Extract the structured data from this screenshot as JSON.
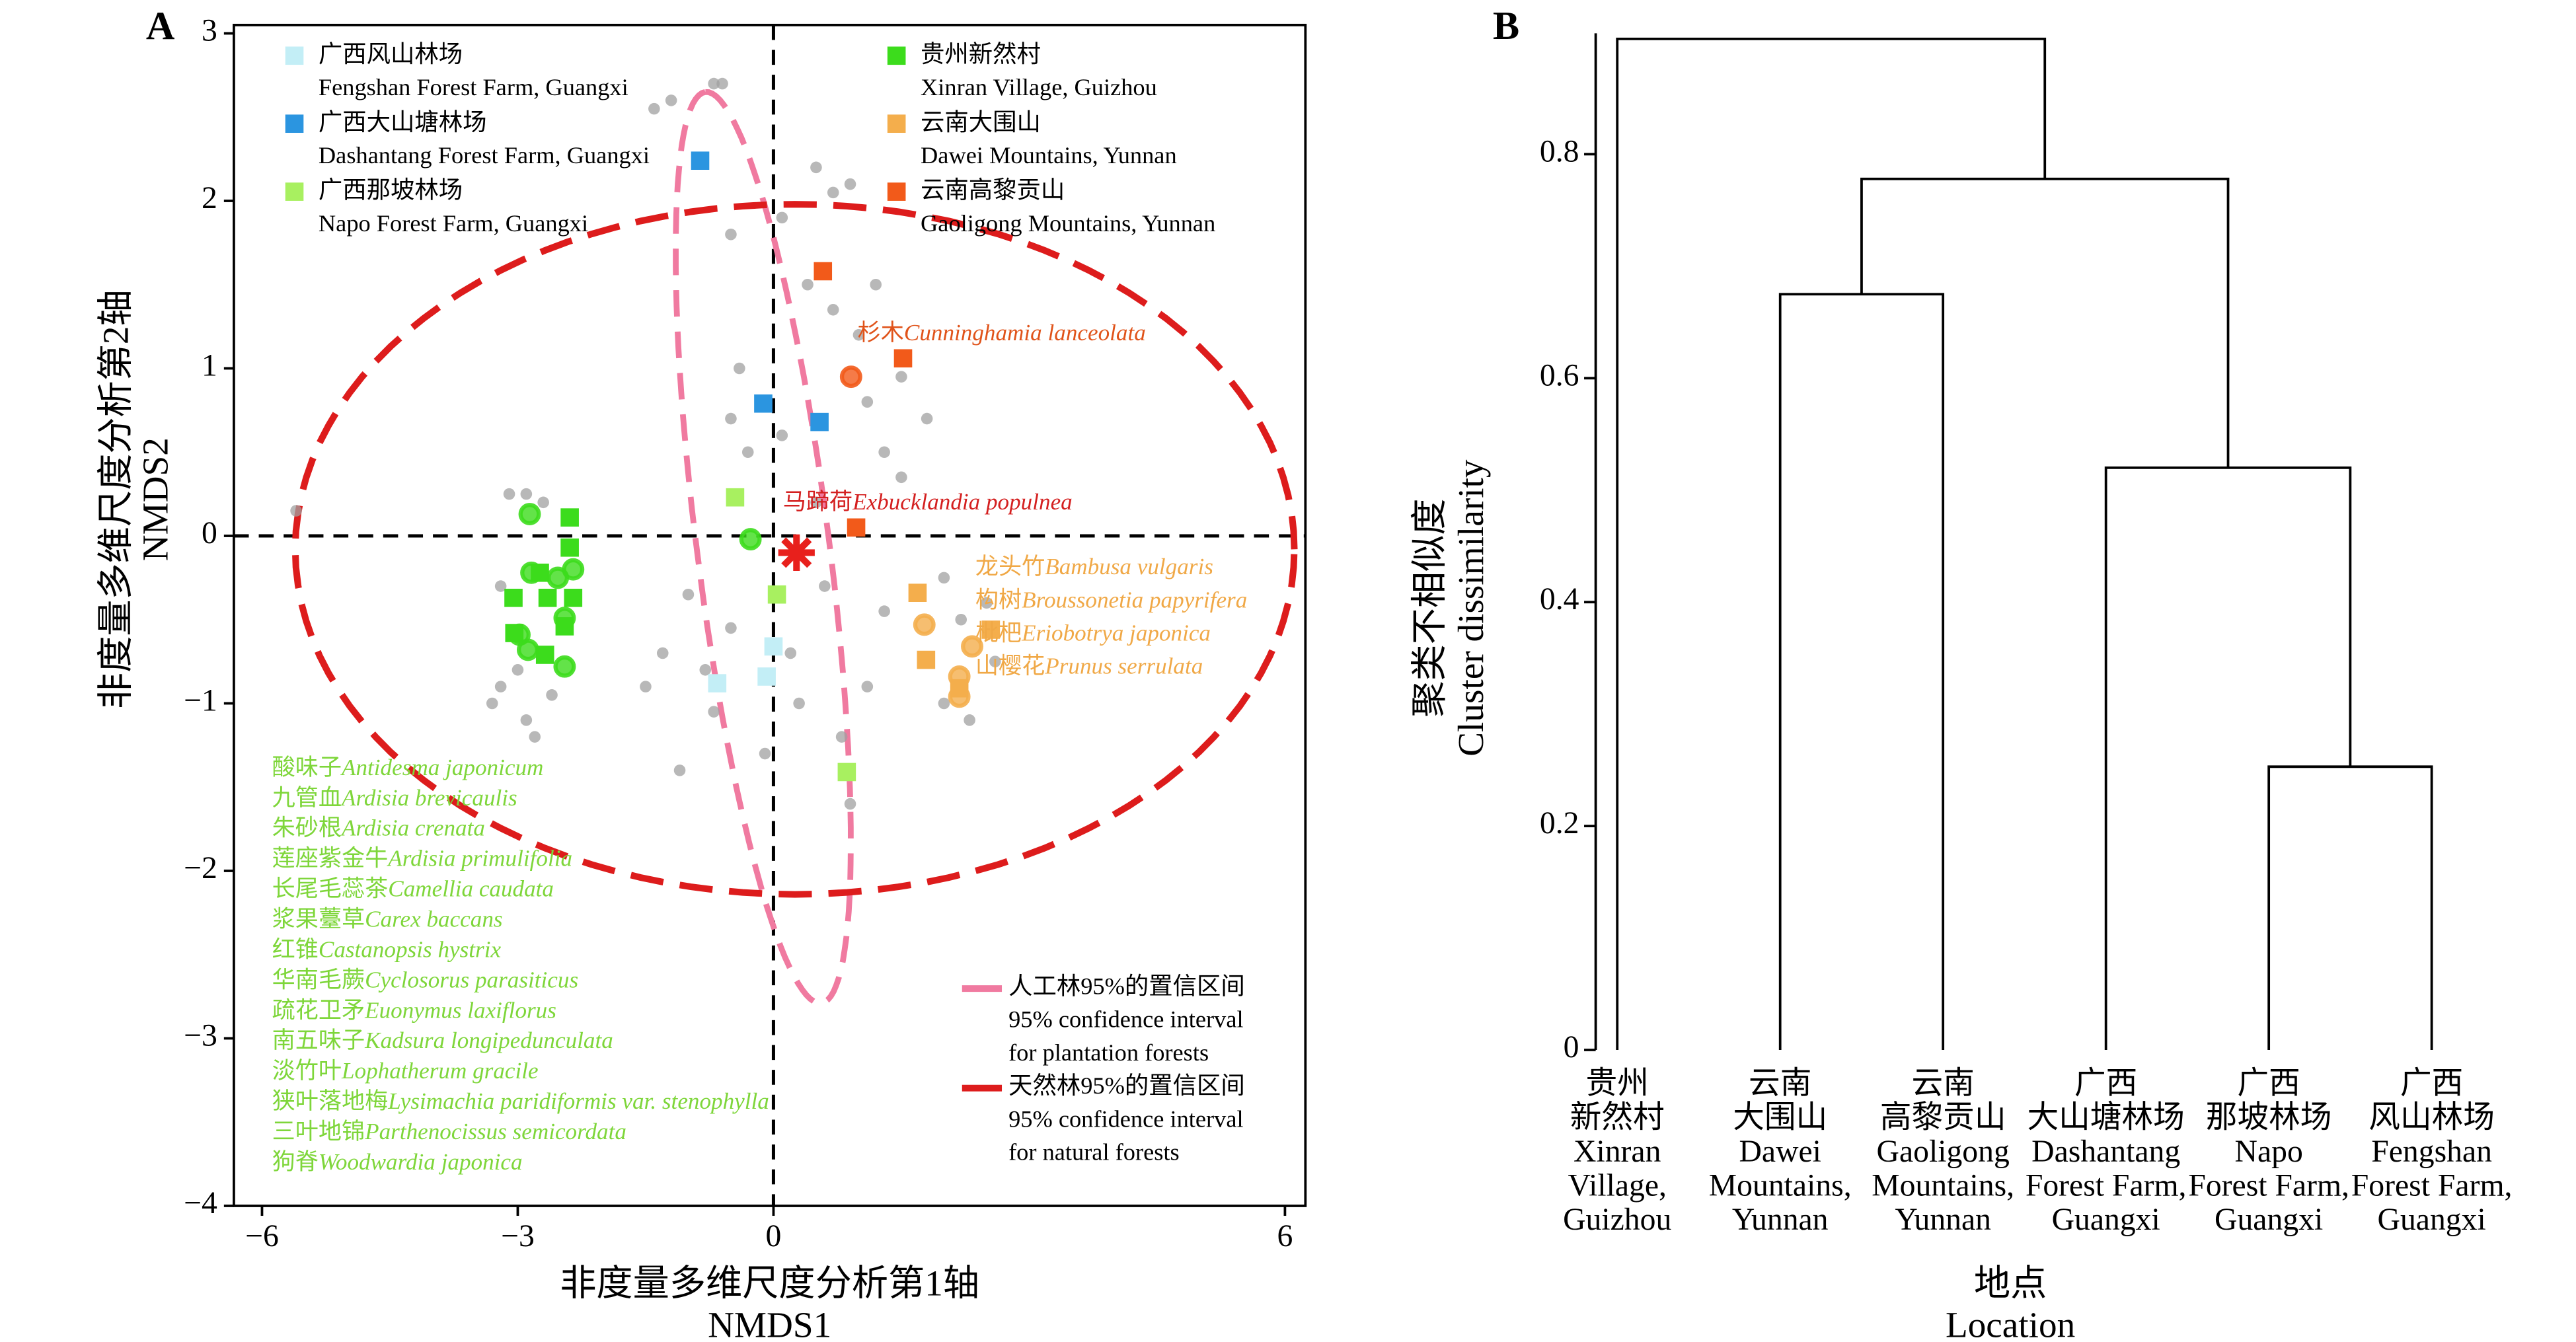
{
  "chart_data": [
    {
      "type": "scatter",
      "panel": "A",
      "x_label": [
        "非度量多维尺度分析第1轴",
        "NMDS1"
      ],
      "y_label": [
        "非度量多维尺度分析第2轴",
        "NMDS2"
      ],
      "xlim": [
        -6.33,
        6.24
      ],
      "ylim": [
        -4,
        3.05
      ],
      "xticks": [
        {
          "value": -6,
          "label": "−6"
        },
        {
          "value": -3,
          "label": "−3"
        },
        0,
        6
      ],
      "yticks": [
        {
          "value": -4,
          "label": "−4"
        },
        {
          "value": -3,
          "label": "−3"
        },
        {
          "value": -2,
          "label": "−2"
        },
        {
          "value": -1,
          "label": "−1"
        },
        0,
        1,
        2,
        3
      ],
      "zero_lines": true,
      "series": [
        {
          "color": "#a0a0a0",
          "marker": "dot",
          "x": [
            -5.6,
            -3.1,
            -2.9,
            -3.2,
            -3.3,
            -2.9,
            -2.8,
            -3.0,
            -2.6,
            -3.2,
            -2.7,
            -1.2,
            -1.4,
            -0.6,
            -0.7,
            -0.5,
            0.5,
            0.9,
            0.7,
            0.1,
            0.4,
            0.7,
            1.2,
            1.0,
            1.5,
            1.8,
            0.5,
            0.1,
            -0.3,
            -0.5,
            -0.4,
            1.1,
            1.3,
            1.5,
            0.6,
            1.3,
            0.2,
            -0.5,
            -0.8,
            -1.0,
            -1.3,
            -1.5,
            0.8,
            1.1,
            -0.7,
            -0.1,
            2.0,
            2.2,
            2.5,
            2.0,
            2.3,
            2.6,
            0.3,
            0.9,
            -1.1
          ],
          "y": [
            0.15,
            0.25,
            0.25,
            -0.9,
            -1.0,
            -1.1,
            -1.2,
            -0.8,
            -0.95,
            -0.3,
            0.2,
            2.6,
            2.55,
            2.7,
            2.7,
            1.8,
            2.2,
            2.1,
            2.05,
            1.9,
            1.5,
            1.35,
            1.5,
            1.2,
            0.95,
            0.7,
            0.2,
            0.6,
            0.5,
            0.7,
            1.0,
            0.8,
            0.5,
            0.35,
            -0.3,
            -0.45,
            -0.7,
            -0.55,
            -0.8,
            -0.35,
            -0.7,
            -0.9,
            -1.2,
            -0.9,
            -1.05,
            -1.3,
            -0.25,
            -0.5,
            -0.4,
            -1.0,
            -1.1,
            -0.75,
            -1.0,
            -1.6,
            -1.4
          ]
        },
        {
          "name": "广西风山林场",
          "name_en": "Fengshan Forest Farm, Guangxi",
          "color": "#c3eef6",
          "marker": "square",
          "x": [
            0,
            -0.08,
            -0.66
          ],
          "y": [
            -0.66,
            -0.84,
            -0.88
          ]
        },
        {
          "name": "广西大山塘林场",
          "name_en": "Dashantang Forest Farm, Guangxi",
          "color": "#2b95e0",
          "marker": "square",
          "x": [
            -0.86,
            -0.12,
            0.54
          ],
          "y": [
            2.24,
            0.79,
            0.68
          ]
        },
        {
          "name": "广西那坡林场",
          "name_en": "Napo Forest Farm, Guangxi",
          "color": "#a8f060",
          "marker": "square",
          "x": [
            -0.45,
            0.04,
            0.86
          ],
          "y": [
            0.23,
            -0.35,
            -1.41
          ]
        },
        {
          "name": "贵州新然村",
          "name_en": "Xinran Village, Guizhou",
          "color": "#3cdc1c",
          "marker": "square",
          "x": [
            -2.39,
            -3.05,
            -2.39,
            -2.74,
            -2.65,
            -2.35,
            -2.45,
            -3.04,
            -2.68
          ],
          "y": [
            0.11,
            -0.37,
            -0.07,
            -0.22,
            -0.37,
            -0.37,
            -0.54,
            -0.58,
            -0.71
          ]
        },
        {
          "name": "云南大围山",
          "name_en": "Dawei Mountains, Yunnan",
          "color": "#f4ae4c",
          "marker": "square",
          "x": [
            1.69,
            1.79,
            2.55,
            2.18
          ],
          "y": [
            -0.34,
            -0.74,
            -0.56,
            -0.91
          ]
        },
        {
          "name": "云南高黎贡山",
          "name_en": "Gaoligong Mountains, Yunnan",
          "color": "#f25a1a",
          "marker": "square",
          "x": [
            0.58,
            1.52,
            0.97
          ],
          "y": [
            1.58,
            1.06,
            0.05
          ]
        },
        {
          "color": "#3cdc1c",
          "marker": "circle",
          "x": [
            -2.86,
            -2.84,
            -2.35,
            -2.98,
            -2.45,
            -2.45,
            -2.88,
            -0.27,
            -2.53
          ],
          "y": [
            0.13,
            -0.22,
            -0.2,
            -0.59,
            -0.78,
            -0.49,
            -0.68,
            -0.02,
            -0.25
          ]
        },
        {
          "color": "#f4ae4c",
          "marker": "circle",
          "x": [
            1.77,
            2.33,
            2.18,
            2.18
          ],
          "y": [
            -0.53,
            -0.66,
            -0.84,
            -0.96
          ]
        },
        {
          "color": "#f25a1a",
          "marker": "circle",
          "x": [
            0.91
          ],
          "y": [
            0.95
          ]
        },
        {
          "color": "#e8201c",
          "marker": "star",
          "x": [
            0.27
          ],
          "y": [
            -0.1
          ]
        }
      ],
      "ellipses": [
        {
          "name": [
            "人工林95%的置信区间",
            "95% confidence interval",
            "for plantation forests"
          ],
          "color": "#f07aa0",
          "center": [
            -0.12,
            -0.07
          ],
          "axis1": [
            -0.68,
            2.72
          ],
          "axis2": [
            0.77,
            0.05
          ]
        },
        {
          "name": [
            "天然林95%的置信区间",
            "95% confidence interval",
            "for natural forests"
          ],
          "color": "#dd1c1c",
          "center": [
            0.25,
            -0.08
          ],
          "axis1": [
            5.86,
            0
          ],
          "axis2": [
            0,
            2.06
          ]
        }
      ],
      "annotations": [
        {
          "color": "#e0531a",
          "items": [
            {
              "zh": "杉木",
              "latin": "Cunninghamia lanceolata"
            }
          ]
        },
        {
          "color": "#d42020",
          "items": [
            {
              "zh": "马蹄荷",
              "latin": "Exbucklandia populnea"
            }
          ]
        },
        {
          "color": "#f0a846",
          "items": [
            {
              "zh": "龙头竹",
              "latin": "Bambusa vulgaris"
            },
            {
              "zh": "构树",
              "latin": "Broussonetia papyrifera"
            },
            {
              "zh": "枇杷",
              "latin": "Eriobotrya japonica"
            },
            {
              "zh": "山樱花",
              "latin": "Prunus serrulata"
            }
          ]
        },
        {
          "color": "#7ed63a",
          "items": [
            {
              "zh": "酸味子",
              "latin": "Antidesma japonicum"
            },
            {
              "zh": "九管血",
              "latin": "Ardisia brevicaulis"
            },
            {
              "zh": "朱砂根",
              "latin": "Ardisia crenata"
            },
            {
              "zh": "莲座紫金牛",
              "latin": "Ardisia primulifolia"
            },
            {
              "zh": "长尾毛蕊茶",
              "latin": "Camellia caudata"
            },
            {
              "zh": "浆果薹草",
              "latin": "Carex baccans"
            },
            {
              "zh": "红锥",
              "latin": "Castanopsis hystrix"
            },
            {
              "zh": "华南毛蕨",
              "latin": "Cyclosorus parasiticus"
            },
            {
              "zh": "疏花卫矛",
              "latin": "Euonymus laxiflorus"
            },
            {
              "zh": "南五味子",
              "latin": "Kadsura longipedunculata"
            },
            {
              "zh": "淡竹叶",
              "latin": "Lophatherum gracile"
            },
            {
              "zh": "狭叶落地梅",
              "latin": "Lysimachia paridiformis var. stenophylla"
            },
            {
              "zh": "三叶地锦",
              "latin": "Parthenocissus semicordata"
            },
            {
              "zh": "狗脊",
              "latin": "Woodwardia japonica"
            }
          ]
        }
      ]
    },
    {
      "type": "dendrogram",
      "panel": "B",
      "x_label": [
        "地点",
        "Location"
      ],
      "y_label": [
        "聚类不相似度",
        "Cluster dissimilarity"
      ],
      "ylim": [
        0,
        0.908
      ],
      "yticks": [
        0,
        0.2,
        0.4,
        0.6,
        0.8
      ],
      "leaves": [
        [
          "贵州",
          "新然村",
          "Xinran",
          "Village,",
          "Guizhou"
        ],
        [
          "云南",
          "大围山",
          "Dawei",
          "Mountains,",
          "Yunnan"
        ],
        [
          "云南",
          "高黎贡山",
          "Gaoligong",
          "Mountains,",
          "Yunnan"
        ],
        [
          "广西",
          "大山塘林场",
          "Dashantang",
          "Forest Farm,",
          "Guangxi"
        ],
        [
          "广西",
          "那坡林场",
          "Napo",
          "Forest Farm,",
          "Guangxi"
        ],
        [
          "广西",
          "风山林场",
          "Fengshan",
          "Forest Farm,",
          "Guangxi"
        ]
      ],
      "merges": [
        {
          "left": 4,
          "right": 5,
          "height": 0.253
        },
        {
          "left": 3,
          "right": 6,
          "height": 0.52
        },
        {
          "left": 1,
          "right": 2,
          "height": 0.675
        },
        {
          "left": 8,
          "right": 7,
          "height": 0.778
        },
        {
          "left": 0,
          "right": 9,
          "height": 0.903
        }
      ]
    }
  ]
}
